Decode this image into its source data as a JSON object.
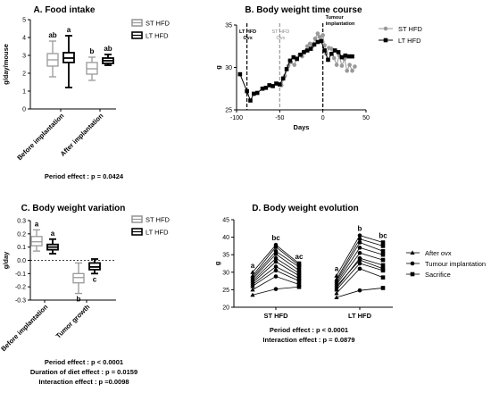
{
  "chart_data": [
    {
      "id": "A",
      "type": "box",
      "title": "A. Food intake",
      "ylabel": "g/day/mouse",
      "ylim": [
        0,
        5
      ],
      "yticks": [
        0,
        1,
        2,
        3,
        4,
        5
      ],
      "categories": [
        "Before implantation",
        "After implantation"
      ],
      "series": [
        {
          "name": "ST HFD",
          "color": "#999999",
          "boxes": [
            {
              "min": 1.8,
              "q1": 2.4,
              "median": 2.75,
              "q3": 3.1,
              "max": 3.8
            },
            {
              "min": 1.6,
              "q1": 1.95,
              "median": 2.25,
              "q3": 2.6,
              "max": 2.9
            }
          ]
        },
        {
          "name": "LT HFD",
          "color": "#000000",
          "boxes": [
            {
              "min": 1.2,
              "q1": 2.6,
              "median": 2.85,
              "q3": 3.15,
              "max": 4.1
            },
            {
              "min": 2.45,
              "q1": 2.55,
              "median": 2.7,
              "q3": 2.85,
              "max": 3.05
            }
          ]
        }
      ],
      "annotations": [
        [
          "ab",
          "a"
        ],
        [
          "b",
          "ab"
        ]
      ],
      "footnotes": [
        "Period effect : p = 0.0424"
      ]
    },
    {
      "id": "B",
      "type": "line",
      "title": "B. Body weight time course",
      "xlabel": "Days",
      "ylabel": "g",
      "xlim": [
        -100,
        50
      ],
      "ylim": [
        25,
        35
      ],
      "xticks": [
        -100,
        -50,
        0,
        50
      ],
      "yticks": [
        25,
        30,
        35
      ],
      "series": [
        {
          "name": "ST HFD",
          "color": "#999999",
          "marker": "circle",
          "points": [
            [
              -48,
              27.9
            ],
            [
              -44,
              29.0
            ],
            [
              -40,
              30.2
            ],
            [
              -37,
              30.6
            ],
            [
              -33,
              30.3
            ],
            [
              -30,
              31.1
            ],
            [
              -27,
              31.5
            ],
            [
              -24,
              31.3
            ],
            [
              -21,
              31.9
            ],
            [
              -18,
              32.5
            ],
            [
              -15,
              32.8
            ],
            [
              -12,
              32.5
            ],
            [
              -9,
              33.4
            ],
            [
              -6,
              34.0
            ],
            [
              -4,
              33.6
            ],
            [
              -2,
              33.2
            ],
            [
              0,
              33.8
            ],
            [
              2,
              32.6
            ],
            [
              4,
              31.6
            ],
            [
              7,
              32.3
            ],
            [
              10,
              32.2
            ],
            [
              13,
              31.1
            ],
            [
              16,
              30.3
            ],
            [
              19,
              31.4
            ],
            [
              22,
              30.2
            ],
            [
              25,
              31.0
            ],
            [
              28,
              29.6
            ],
            [
              31,
              30.3
            ],
            [
              34,
              29.6
            ],
            [
              37,
              30.1
            ]
          ]
        },
        {
          "name": "LT HFD",
          "color": "#000000",
          "marker": "square",
          "points": [
            [
              -96,
              29.2
            ],
            [
              -88,
              27.2
            ],
            [
              -84,
              26.1
            ],
            [
              -80,
              26.9
            ],
            [
              -76,
              27.0
            ],
            [
              -70,
              27.5
            ],
            [
              -66,
              27.6
            ],
            [
              -62,
              27.9
            ],
            [
              -58,
              27.8
            ],
            [
              -54,
              28.1
            ],
            [
              -50,
              28.0
            ],
            [
              -46,
              28.7
            ],
            [
              -42,
              29.8
            ],
            [
              -38,
              30.8
            ],
            [
              -34,
              31.2
            ],
            [
              -30,
              31.0
            ],
            [
              -26,
              31.5
            ],
            [
              -22,
              31.8
            ],
            [
              -18,
              32.0
            ],
            [
              -14,
              32.2
            ],
            [
              -10,
              32.7
            ],
            [
              -6,
              33.0
            ],
            [
              -2,
              33.1
            ],
            [
              2,
              32.0
            ],
            [
              6,
              30.9
            ],
            [
              10,
              31.6
            ],
            [
              14,
              32.0
            ],
            [
              18,
              31.8
            ],
            [
              22,
              31.2
            ],
            [
              26,
              31.4
            ],
            [
              30,
              31.3
            ],
            [
              34,
              31.3
            ]
          ]
        }
      ],
      "vlines": [
        {
          "x": -88,
          "label": [
            "LT HFD",
            "Ovx"
          ],
          "color": "#000000"
        },
        {
          "x": -50,
          "label": [
            "ST HFD",
            "Ovx"
          ],
          "color": "#999999"
        },
        {
          "x": 0,
          "label": [
            "Tumour",
            "implantation"
          ],
          "color": "#000000"
        }
      ]
    },
    {
      "id": "C",
      "type": "box",
      "title": "C. Body weight variation",
      "ylabel": "g/day",
      "ylim": [
        -0.3,
        0.3
      ],
      "yticks": [
        -0.3,
        -0.2,
        -0.1,
        0.0,
        0.1,
        0.2,
        0.3
      ],
      "categories": [
        "Before implantation",
        "Tumor growth"
      ],
      "series": [
        {
          "name": "ST HFD",
          "color": "#999999",
          "boxes": [
            {
              "min": 0.07,
              "q1": 0.11,
              "median": 0.14,
              "q3": 0.18,
              "max": 0.23
            },
            {
              "min": -0.25,
              "q1": -0.17,
              "median": -0.13,
              "q3": -0.1,
              "max": -0.02
            }
          ]
        },
        {
          "name": "LT HFD",
          "color": "#000000",
          "boxes": [
            {
              "min": 0.05,
              "q1": 0.08,
              "median": 0.1,
              "q3": 0.12,
              "max": 0.16
            },
            {
              "min": -0.1,
              "q1": -0.07,
              "median": -0.05,
              "q3": -0.02,
              "max": 0.01
            }
          ]
        }
      ],
      "annotations": [
        [
          "a",
          "a"
        ],
        [
          "b",
          "c"
        ]
      ],
      "footnotes": [
        "Period effect : p < 0.0001",
        "Duration of diet effect : p = 0.0159",
        "Interaction effect : p =0.0098"
      ]
    },
    {
      "id": "D",
      "type": "line",
      "title": "D. Body weight evolution",
      "ylabel": "g",
      "ylim": [
        20,
        45
      ],
      "yticks": [
        20,
        25,
        30,
        35,
        40,
        45
      ],
      "groups": [
        "ST HFD",
        "LT HFD"
      ],
      "timepoints": [
        "After ovx",
        "Tumour implantation",
        "Sacrifice"
      ],
      "legend_markers": [
        "triangle",
        "circle",
        "square"
      ],
      "subjects": [
        {
          "group": "ST HFD",
          "values": [
            23.5,
            25.2,
            25.8
          ]
        },
        {
          "group": "ST HFD",
          "values": [
            25.0,
            28.8,
            26.5
          ]
        },
        {
          "group": "ST HFD",
          "values": [
            26.0,
            30.5,
            27.5
          ]
        },
        {
          "group": "ST HFD",
          "values": [
            26.5,
            31.6,
            28.2
          ]
        },
        {
          "group": "ST HFD",
          "values": [
            27.0,
            33.0,
            29.0
          ]
        },
        {
          "group": "ST HFD",
          "values": [
            27.5,
            34.0,
            29.7
          ]
        },
        {
          "group": "ST HFD",
          "values": [
            28.0,
            35.2,
            30.5
          ]
        },
        {
          "group": "ST HFD",
          "values": [
            28.5,
            36.0,
            31.5
          ]
        },
        {
          "group": "ST HFD",
          "values": [
            29.0,
            37.2,
            32.0
          ]
        },
        {
          "group": "ST HFD",
          "values": [
            30.0,
            37.8,
            32.5
          ]
        },
        {
          "group": "LT HFD",
          "values": [
            22.8,
            24.8,
            25.5
          ]
        },
        {
          "group": "LT HFD",
          "values": [
            24.0,
            31.0,
            28.5
          ]
        },
        {
          "group": "LT HFD",
          "values": [
            25.0,
            32.5,
            30.5
          ]
        },
        {
          "group": "LT HFD",
          "values": [
            25.5,
            34.0,
            32.0
          ]
        },
        {
          "group": "LT HFD",
          "values": [
            26.0,
            33.5,
            31.0
          ]
        },
        {
          "group": "LT HFD",
          "values": [
            26.5,
            35.5,
            33.5
          ]
        },
        {
          "group": "LT HFD",
          "values": [
            27.0,
            37.0,
            35.0
          ]
        },
        {
          "group": "LT HFD",
          "values": [
            27.5,
            38.5,
            36.0
          ]
        },
        {
          "group": "LT HFD",
          "values": [
            28.0,
            39.5,
            37.5
          ]
        },
        {
          "group": "LT HFD",
          "values": [
            29.0,
            40.5,
            38.5
          ]
        }
      ],
      "annotations": [
        [
          "a",
          "bc",
          "ac"
        ],
        [
          "a",
          "b",
          "bc"
        ]
      ],
      "footnotes": [
        "Period effect : p < 0.0001",
        "Interaction effect : p = 0.0879"
      ]
    }
  ]
}
